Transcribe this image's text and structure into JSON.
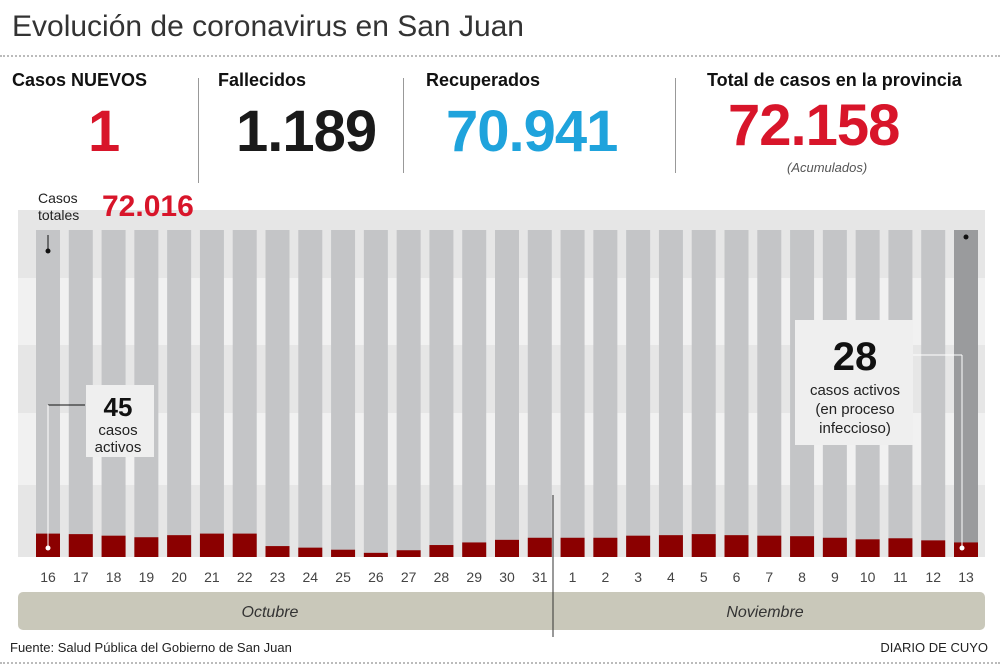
{
  "title": "Evolución de coronavirus en San Juan",
  "stats": [
    {
      "label": "Casos NUEVOS",
      "value": "1",
      "color": "#d8152a"
    },
    {
      "label": "Fallecidos",
      "value": "1.189",
      "color": "#1a1a1a"
    },
    {
      "label": "Recuperados",
      "value": "70.941",
      "color": "#1fa3dc"
    },
    {
      "label": "Total de casos en la provincia",
      "value": "72.158",
      "color": "#d8152a",
      "note": "(Acumulados)"
    }
  ],
  "colors": {
    "total_bar": "#c4c5c7",
    "total_bar_last": "#9a9b9d",
    "active_bar": "#8b0000",
    "month_band": "#c9c8ba"
  },
  "chart_data": {
    "type": "bar",
    "categories": [
      "16",
      "17",
      "18",
      "19",
      "20",
      "21",
      "22",
      "23",
      "24",
      "25",
      "26",
      "27",
      "28",
      "29",
      "30",
      "31",
      "1",
      "2",
      "3",
      "4",
      "5",
      "6",
      "7",
      "8",
      "9",
      "10",
      "11",
      "12",
      "13"
    ],
    "series": [
      {
        "values": [
          45,
          44,
          41,
          38,
          42,
          45,
          45,
          21,
          18,
          14,
          8,
          13,
          23,
          28,
          33,
          37,
          37,
          37,
          41,
          42,
          44,
          42,
          41,
          40,
          37,
          34,
          36,
          32,
          28
        ]
      }
    ],
    "months": [
      "Octubre",
      "Noviembre"
    ],
    "annotations": {
      "total_label": "Casos totales",
      "total_first": "72.016",
      "active_first_value": "45",
      "active_first_text": "casos activos",
      "active_last_value": "28",
      "active_last_text": "casos activos (en proceso infeccioso)"
    }
  },
  "footer": {
    "source": "Fuente: Salud Pública del Gobierno de San Juan",
    "brand": "DIARIO DE CUYO"
  }
}
